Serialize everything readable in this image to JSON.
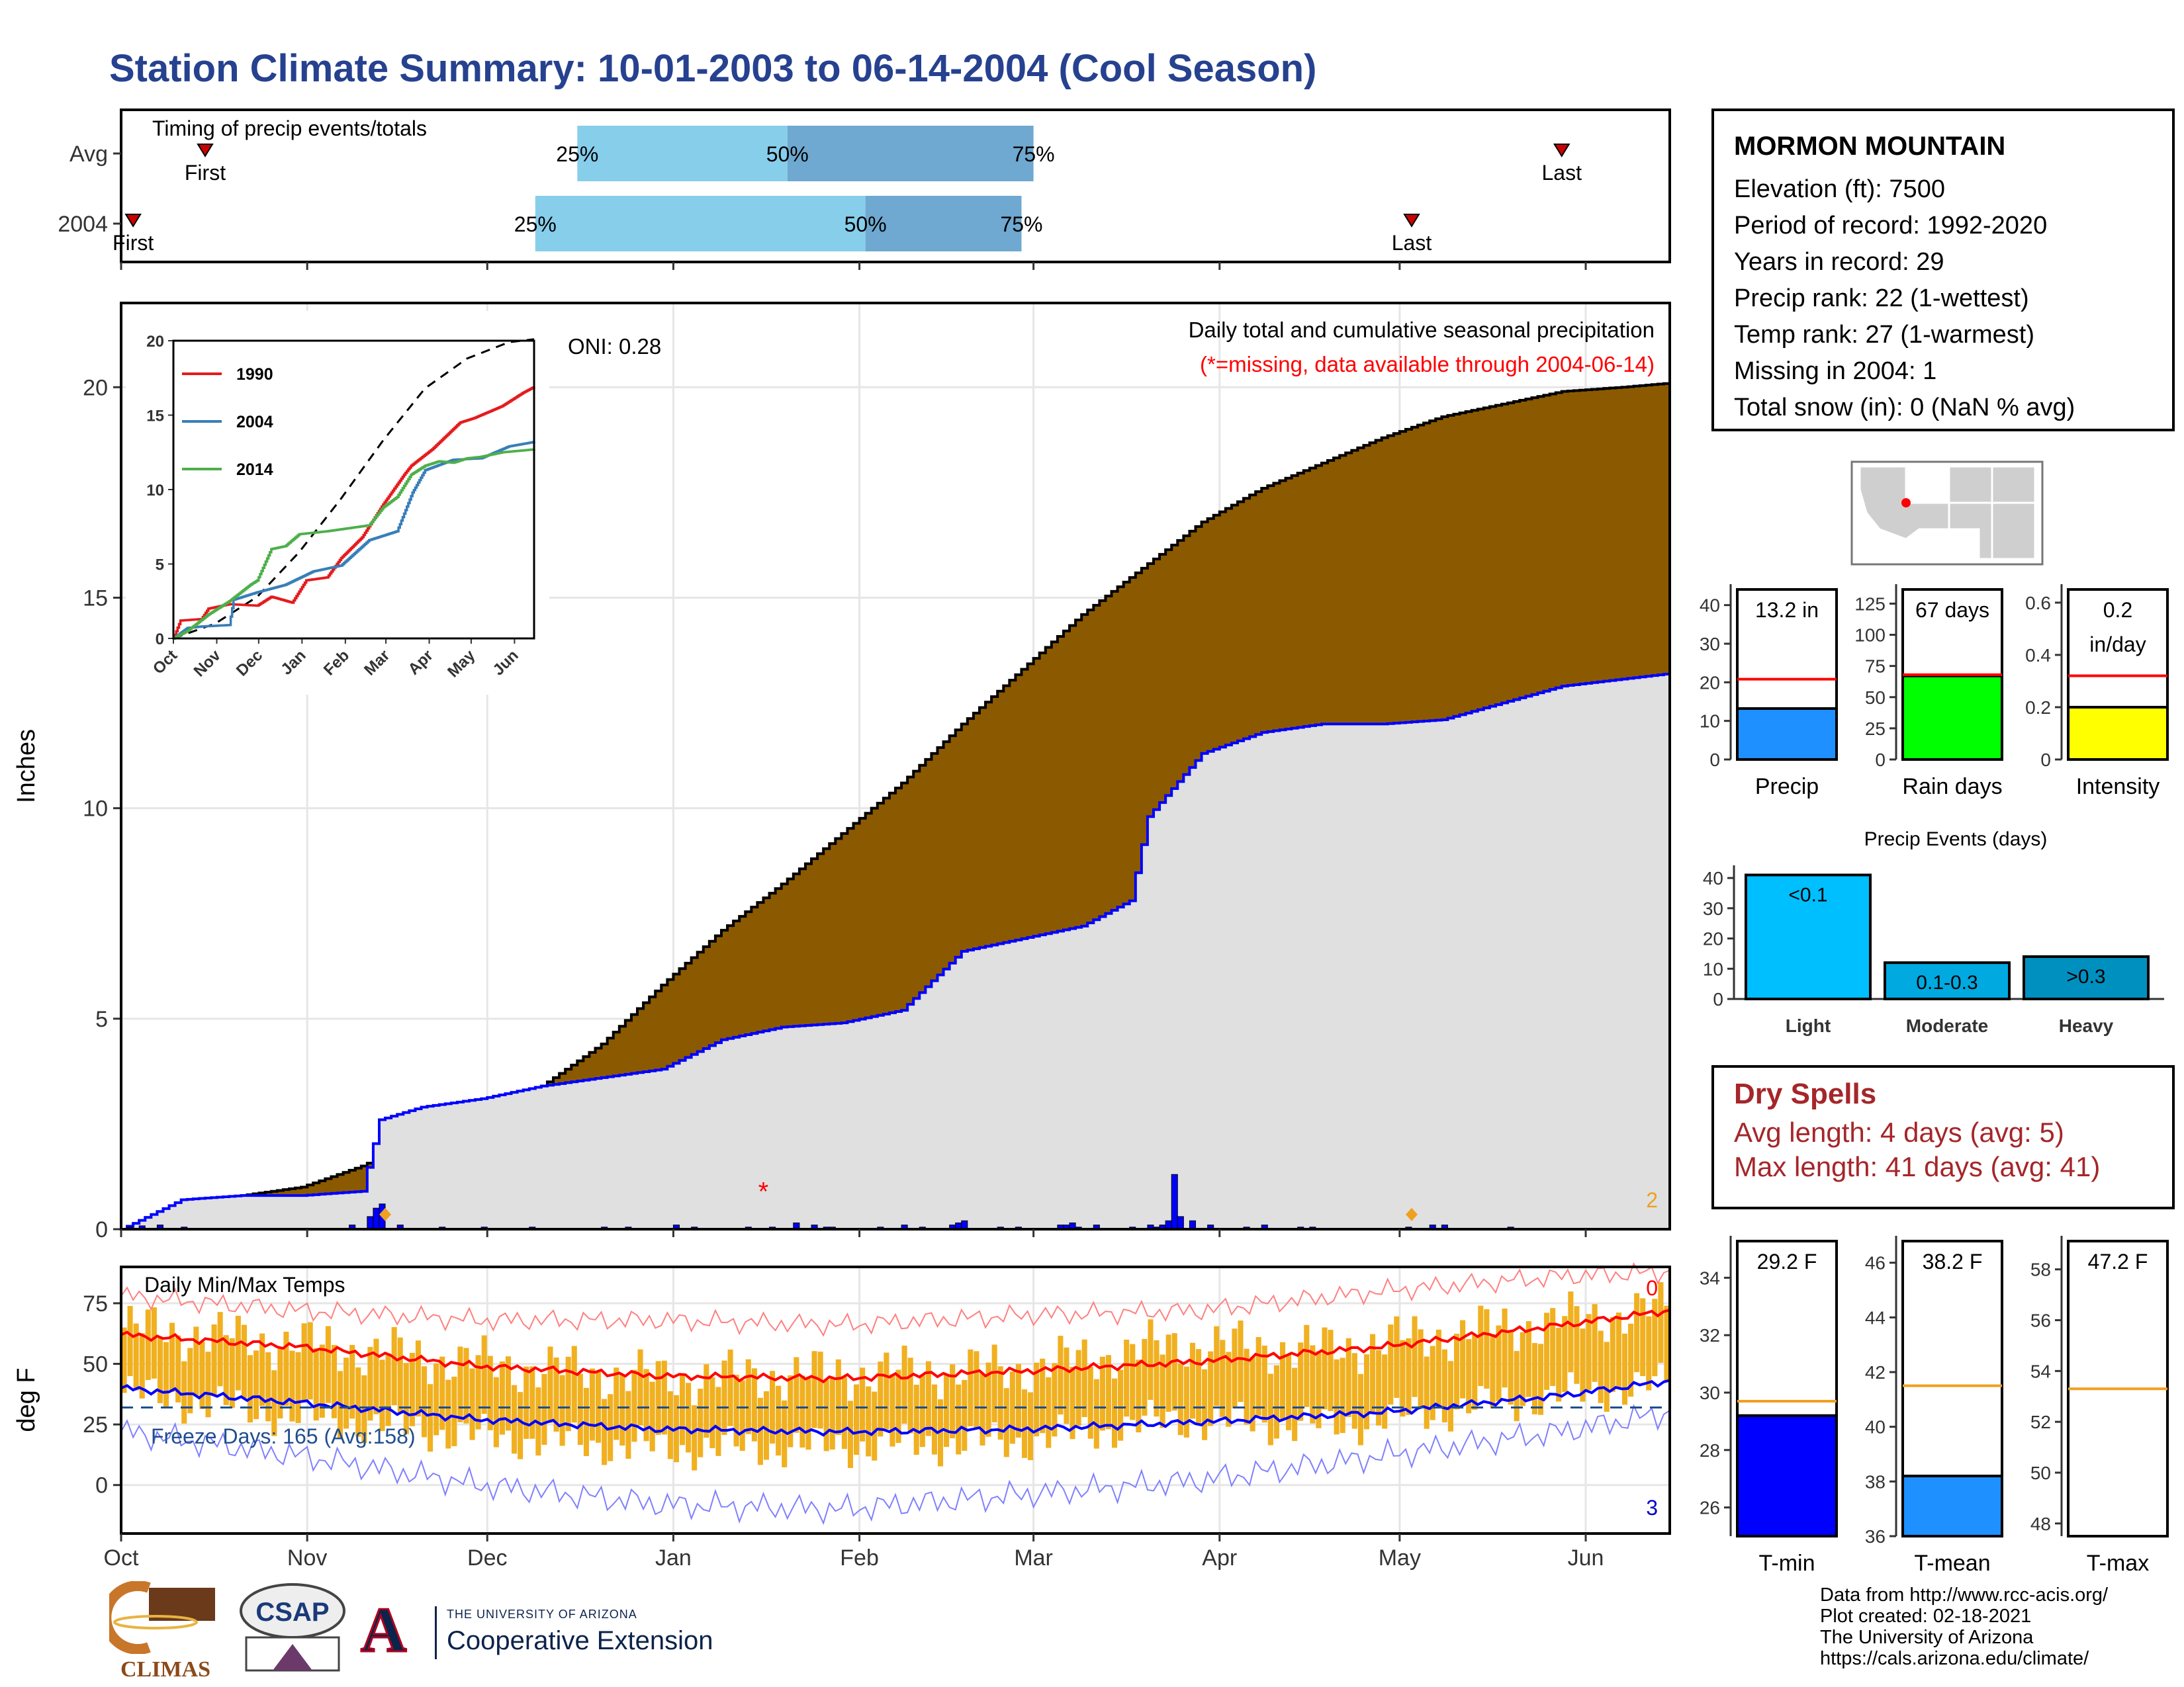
{
  "title": "Station Climate Summary: 10-01-2003 to 06-14-2004 (Cool Season)",
  "station": {
    "name": "MORMON MOUNTAIN",
    "lines": [
      "Elevation (ft): 7500",
      "Period of record: 1992-2020",
      "Years in record: 29",
      "Precip rank: 22 (1-wettest)",
      "Temp rank: 27 (1-warmest)",
      "Missing in 2004: 1",
      "Total snow (in): 0 (NaN % avg)"
    ]
  },
  "dry_spells": {
    "title": "Dry Spells",
    "avg": "Avg length: 4 days (avg: 5)",
    "max": "Max length: 41 days (avg: 41)"
  },
  "credits": [
    "Data from http://www.rcc-acis.org/",
    "Plot created: 02-18-2021",
    "The University of Arizona",
    "https://cals.arizona.edu/climate/"
  ],
  "logos": {
    "climas": "CLIMAS",
    "csap": "CSAP",
    "ua_line1": "THE UNIVERSITY OF ARIZONA",
    "ua_line2": "Cooperative Extension",
    "ua_letter": "A"
  },
  "colors": {
    "precip_fill": "#8b5a00",
    "cum_area": "#e0e0e0",
    "current_line": "#0000ff",
    "light_blue": "#87ceeb",
    "mid_blue": "#6fa8d0",
    "temp_bar": "#f0b020",
    "red": "#ff0000"
  },
  "chart_data": [
    {
      "id": "timing",
      "type": "timing",
      "title": "Timing of precip events/totals",
      "rows": [
        {
          "label": "Avg",
          "first": "2003-10-15",
          "p25": "2003-12-16",
          "p50": "2004-01-20",
          "p75": "2004-03-01",
          "last": "2004-05-28",
          "first_label": "First",
          "last_label": "Last"
        },
        {
          "label": "2004",
          "first": "2003-10-03",
          "p25": "2003-12-09",
          "p50": "2004-02-02",
          "p75": "2004-02-28",
          "last": "2004-05-03",
          "first_label": "First",
          "last_label": "Last"
        }
      ],
      "pct_labels": [
        "25%",
        "50%",
        "75%"
      ]
    },
    {
      "id": "precip",
      "type": "area",
      "subtitle": "Daily total and cumulative seasonal precipitation",
      "note": "(*=missing, data available through 2004-06-14)",
      "oni": "ONI: 0.28",
      "ylabel": "Inches",
      "ylim": [
        0,
        22
      ],
      "yticks": [
        0,
        5,
        10,
        15,
        20
      ],
      "xticks": [
        "Oct",
        "Nov",
        "Dec",
        "Jan",
        "Feb",
        "Mar",
        "Apr",
        "May",
        "Jun"
      ],
      "corner_label": "2",
      "avg_cum": [
        [
          0,
          0
        ],
        [
          10,
          0.5
        ],
        [
          20,
          0.8
        ],
        [
          30,
          1.0
        ],
        [
          40,
          1.5
        ],
        [
          50,
          2.2
        ],
        [
          60,
          2.8
        ],
        [
          70,
          3.4
        ],
        [
          80,
          4.4
        ],
        [
          90,
          5.8
        ],
        [
          100,
          7.1
        ],
        [
          110,
          8.2
        ],
        [
          120,
          9.4
        ],
        [
          130,
          10.6
        ],
        [
          140,
          12.0
        ],
        [
          150,
          13.3
        ],
        [
          160,
          14.6
        ],
        [
          170,
          15.7
        ],
        [
          180,
          16.8
        ],
        [
          190,
          17.6
        ],
        [
          200,
          18.2
        ],
        [
          210,
          18.8
        ],
        [
          220,
          19.3
        ],
        [
          230,
          19.6
        ],
        [
          240,
          19.9
        ],
        [
          250,
          20.0
        ],
        [
          258,
          20.1
        ]
      ],
      "cur_cum": [
        [
          0,
          0
        ],
        [
          10,
          0.7
        ],
        [
          20,
          0.8
        ],
        [
          30,
          0.8
        ],
        [
          40,
          0.9
        ],
        [
          43,
          2.6
        ],
        [
          50,
          2.9
        ],
        [
          60,
          3.1
        ],
        [
          70,
          3.4
        ],
        [
          80,
          3.6
        ],
        [
          90,
          3.8
        ],
        [
          100,
          4.5
        ],
        [
          110,
          4.8
        ],
        [
          120,
          4.9
        ],
        [
          130,
          5.2
        ],
        [
          140,
          6.6
        ],
        [
          150,
          6.9
        ],
        [
          160,
          7.2
        ],
        [
          168,
          7.8
        ],
        [
          171,
          9.8
        ],
        [
          180,
          11.3
        ],
        [
          190,
          11.8
        ],
        [
          200,
          12.0
        ],
        [
          210,
          12.0
        ],
        [
          220,
          12.1
        ],
        [
          230,
          12.5
        ],
        [
          240,
          12.9
        ],
        [
          258,
          13.2
        ]
      ],
      "daily_bars": [
        [
          1,
          0.05
        ],
        [
          3,
          0.08
        ],
        [
          6,
          0.1
        ],
        [
          10,
          0.05
        ],
        [
          38,
          0.1
        ],
        [
          41,
          0.3
        ],
        [
          42,
          0.5
        ],
        [
          43,
          0.6
        ],
        [
          46,
          0.1
        ],
        [
          53,
          0.05
        ],
        [
          60,
          0.05
        ],
        [
          68,
          0.05
        ],
        [
          80,
          0.05
        ],
        [
          84,
          0.05
        ],
        [
          92,
          0.1
        ],
        [
          95,
          0.05
        ],
        [
          104,
          0.05
        ],
        [
          108,
          0.05
        ],
        [
          112,
          0.15
        ],
        [
          115,
          0.1
        ],
        [
          117,
          0.05
        ],
        [
          118,
          0.05
        ],
        [
          126,
          0.05
        ],
        [
          130,
          0.1
        ],
        [
          133,
          0.05
        ],
        [
          138,
          0.1
        ],
        [
          139,
          0.15
        ],
        [
          140,
          0.2
        ],
        [
          146,
          0.05
        ],
        [
          149,
          0.05
        ],
        [
          156,
          0.1
        ],
        [
          157,
          0.1
        ],
        [
          158,
          0.15
        ],
        [
          159,
          0.05
        ],
        [
          162,
          0.1
        ],
        [
          168,
          0.05
        ],
        [
          171,
          0.1
        ],
        [
          172,
          0.05
        ],
        [
          173,
          0.1
        ],
        [
          174,
          0.2
        ],
        [
          175,
          1.3
        ],
        [
          176,
          0.3
        ],
        [
          178,
          0.2
        ],
        [
          181,
          0.1
        ],
        [
          187,
          0.05
        ],
        [
          190,
          0.1
        ],
        [
          196,
          0.05
        ],
        [
          198,
          0.05
        ],
        [
          214,
          0.05
        ],
        [
          218,
          0.1
        ],
        [
          220,
          0.1
        ],
        [
          231,
          0.05
        ]
      ],
      "missing_day": 107,
      "orange_markers": [
        44,
        215
      ],
      "legend_note": "*"
    },
    {
      "id": "inset",
      "type": "line",
      "ylim": [
        0,
        20
      ],
      "yticks": [
        0,
        5,
        10,
        15,
        20
      ],
      "xticks": [
        "Oct",
        "Nov",
        "Dec",
        "Jan",
        "Feb",
        "Mar",
        "Apr",
        "May",
        "Jun"
      ],
      "series": [
        {
          "name": "1990",
          "color": "#e41a1c",
          "points": [
            [
              0,
              0
            ],
            [
              5,
              1.2
            ],
            [
              20,
              1.3
            ],
            [
              25,
              2.0
            ],
            [
              40,
              2.3
            ],
            [
              60,
              2.2
            ],
            [
              70,
              2.8
            ],
            [
              85,
              2.4
            ],
            [
              95,
              3.9
            ],
            [
              110,
              4.1
            ],
            [
              120,
              5.4
            ],
            [
              135,
              6.8
            ],
            [
              150,
              9.0
            ],
            [
              165,
              11.0
            ],
            [
              170,
              11.6
            ],
            [
              185,
              12.7
            ],
            [
              195,
              13.6
            ],
            [
              205,
              14.5
            ],
            [
              215,
              14.8
            ],
            [
              225,
              15.2
            ],
            [
              235,
              15.6
            ],
            [
              250,
              16.5
            ],
            [
              258,
              16.9
            ]
          ]
        },
        {
          "name": "2004",
          "color": "#377eb8",
          "points": [
            [
              0,
              0
            ],
            [
              10,
              0.7
            ],
            [
              20,
              0.8
            ],
            [
              40,
              0.9
            ],
            [
              43,
              2.6
            ],
            [
              60,
              3.1
            ],
            [
              80,
              3.6
            ],
            [
              100,
              4.5
            ],
            [
              120,
              4.9
            ],
            [
              140,
              6.6
            ],
            [
              160,
              7.2
            ],
            [
              171,
              9.8
            ],
            [
              180,
              11.3
            ],
            [
              200,
              12.0
            ],
            [
              220,
              12.1
            ],
            [
              240,
              12.9
            ],
            [
              258,
              13.2
            ]
          ]
        },
        {
          "name": "2014",
          "color": "#4daf4a",
          "points": [
            [
              0,
              0
            ],
            [
              10,
              0.5
            ],
            [
              25,
              1.6
            ],
            [
              40,
              2.5
            ],
            [
              55,
              3.6
            ],
            [
              60,
              3.9
            ],
            [
              70,
              6.0
            ],
            [
              80,
              6.2
            ],
            [
              90,
              7.0
            ],
            [
              110,
              7.2
            ],
            [
              140,
              7.6
            ],
            [
              150,
              8.8
            ],
            [
              160,
              9.5
            ],
            [
              170,
              11.0
            ],
            [
              180,
              11.6
            ],
            [
              190,
              11.9
            ],
            [
              200,
              11.8
            ],
            [
              210,
              12.1
            ],
            [
              220,
              12.2
            ],
            [
              235,
              12.5
            ],
            [
              258,
              12.7
            ]
          ]
        }
      ],
      "avg_points": [
        [
          0,
          0
        ],
        [
          30,
          1.0
        ],
        [
          60,
          2.8
        ],
        [
          90,
          5.8
        ],
        [
          120,
          9.4
        ],
        [
          150,
          13.3
        ],
        [
          180,
          16.8
        ],
        [
          210,
          18.8
        ],
        [
          240,
          19.9
        ],
        [
          258,
          20.1
        ]
      ]
    },
    {
      "id": "temp",
      "type": "bar",
      "title": "Daily Min/Max Temps",
      "ylabel": "deg F",
      "ylim": [
        -20,
        90
      ],
      "yticks": [
        0,
        25,
        50,
        75
      ],
      "xticks": [
        "Oct",
        "Nov",
        "Dec",
        "Jan",
        "Feb",
        "Mar",
        "Apr",
        "May",
        "Jun"
      ],
      "freeze_label": "Freeze Days: 165 (Avg:158)",
      "freeze_line": 32,
      "top_count": "0",
      "bottom_count": "3",
      "avg_max": [
        [
          0,
          62
        ],
        [
          30,
          57
        ],
        [
          60,
          49
        ],
        [
          90,
          45
        ],
        [
          120,
          44
        ],
        [
          150,
          47
        ],
        [
          180,
          51
        ],
        [
          210,
          57
        ],
        [
          240,
          66
        ],
        [
          258,
          72
        ]
      ],
      "avg_min": [
        [
          0,
          40
        ],
        [
          30,
          34
        ],
        [
          60,
          27
        ],
        [
          90,
          23
        ],
        [
          120,
          22
        ],
        [
          150,
          23
        ],
        [
          180,
          26
        ],
        [
          210,
          30
        ],
        [
          240,
          37
        ],
        [
          258,
          43
        ]
      ],
      "rec_max": [
        [
          0,
          78
        ],
        [
          30,
          72
        ],
        [
          60,
          68
        ],
        [
          90,
          68
        ],
        [
          120,
          66
        ],
        [
          150,
          70
        ],
        [
          180,
          72
        ],
        [
          210,
          80
        ],
        [
          240,
          86
        ],
        [
          258,
          88
        ]
      ],
      "rec_min": [
        [
          0,
          22
        ],
        [
          30,
          12
        ],
        [
          60,
          0
        ],
        [
          90,
          -8
        ],
        [
          120,
          -10
        ],
        [
          150,
          -4
        ],
        [
          180,
          2
        ],
        [
          210,
          12
        ],
        [
          240,
          22
        ],
        [
          258,
          30
        ]
      ],
      "bar_max": [
        [
          0,
          65
        ],
        [
          30,
          58
        ],
        [
          60,
          50
        ],
        [
          90,
          44
        ],
        [
          120,
          46
        ],
        [
          150,
          48
        ],
        [
          175,
          58
        ],
        [
          200,
          56
        ],
        [
          230,
          65
        ],
        [
          258,
          73
        ]
      ],
      "bar_min": [
        [
          0,
          38
        ],
        [
          30,
          28
        ],
        [
          60,
          20
        ],
        [
          90,
          15
        ],
        [
          120,
          16
        ],
        [
          150,
          18
        ],
        [
          175,
          27
        ],
        [
          200,
          24
        ],
        [
          230,
          34
        ],
        [
          258,
          42
        ]
      ]
    },
    {
      "id": "totals",
      "type": "bar",
      "panels": [
        {
          "label": "Precip",
          "value": 13.2,
          "avg": 20.8,
          "ylim": [
            0,
            42
          ],
          "yticks": [
            0,
            10,
            20,
            30,
            40
          ],
          "color": "#1e90ff",
          "text": "13.2 in"
        },
        {
          "label": "Rain days",
          "value": 67,
          "avg": 68,
          "ylim": [
            0,
            130
          ],
          "yticks": [
            0,
            25,
            50,
            75,
            100,
            125
          ],
          "color": "#00ff00",
          "text": "67 days"
        },
        {
          "label": "Intensity",
          "value": 0.2,
          "avg": 0.32,
          "ylim": [
            0,
            0.62
          ],
          "yticks": [
            0.0,
            0.2,
            0.4,
            0.6
          ],
          "color": "#ffff00",
          "text": "0.2",
          "text2": "in/day"
        }
      ]
    },
    {
      "id": "events",
      "type": "bar",
      "title": "Precip Events (days)",
      "categories": [
        "Light",
        "Moderate",
        "Heavy"
      ],
      "values": [
        41,
        12,
        14
      ],
      "labels": [
        "<0.1",
        "0.1-0.3",
        ">0.3"
      ],
      "colors": [
        "#00bfff",
        "#00a9e0",
        "#0090c0"
      ],
      "ylim": [
        0,
        42
      ],
      "yticks": [
        0,
        10,
        20,
        30,
        40
      ]
    },
    {
      "id": "temps",
      "type": "bar",
      "panels": [
        {
          "label": "T-min",
          "value": 29.2,
          "avg": 29.7,
          "ylim": [
            25,
            35
          ],
          "yticks": [
            26,
            28,
            30,
            32,
            34
          ],
          "color": "#0000ff",
          "text": "29.2 F"
        },
        {
          "label": "T-mean",
          "value": 38.2,
          "avg": 41.5,
          "ylim": [
            36,
            46.5
          ],
          "yticks": [
            36,
            38,
            40,
            42,
            44,
            46
          ],
          "color": "#1e90ff",
          "text": "38.2 F"
        },
        {
          "label": "T-max",
          "value": 47.2,
          "avg": 53.3,
          "ylim": [
            47.5,
            58.8
          ],
          "yticks": [
            48,
            50,
            52,
            54,
            56,
            58
          ],
          "color": "#ffffff",
          "text": "47.2 F"
        }
      ]
    }
  ]
}
